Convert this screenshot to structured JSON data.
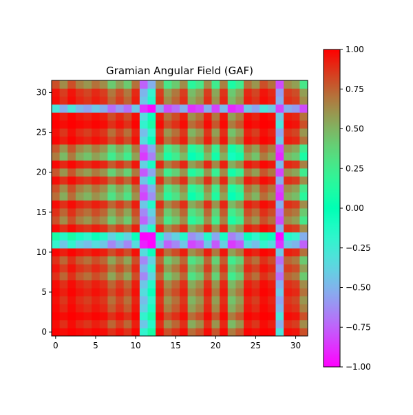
{
  "chart_data": {
    "type": "heatmap",
    "title": "Gramian Angular Field (GAF)",
    "xlabel": "",
    "ylabel": "",
    "grid": false,
    "origin": "lower",
    "size": 32,
    "xlim": [
      -0.5,
      31.5
    ],
    "ylim": [
      -0.5,
      31.5
    ],
    "x_ticks": [
      0,
      5,
      10,
      15,
      20,
      25,
      30
    ],
    "y_ticks": [
      0,
      5,
      10,
      15,
      20,
      25,
      30
    ],
    "colormap": "rainbow",
    "colorbar": {
      "vmin": -1.0,
      "vmax": 1.0,
      "placement": "right",
      "ticks": [
        -1.0,
        -0.75,
        -0.5,
        -0.25,
        0.0,
        0.25,
        0.5,
        0.75,
        1.0
      ],
      "tick_labels": [
        "−1.00",
        "−0.75",
        "−0.50",
        "−0.25",
        "0.00",
        "0.25",
        "0.50",
        "0.75",
        "1.00"
      ]
    },
    "series_1d": [
      -1.0,
      -0.97,
      -1.0,
      -0.98,
      -0.96,
      -0.99,
      -0.97,
      -0.88,
      -0.95,
      -0.88,
      -0.99,
      0.2,
      -0.1,
      -0.97,
      -0.8,
      -0.88,
      -0.97,
      -0.72,
      -0.8,
      -0.97,
      -0.78,
      -0.98,
      -0.68,
      -0.78,
      -0.99,
      -0.96,
      -1.0,
      -0.99,
      0.3,
      -0.97,
      -0.95,
      -0.8
    ],
    "matrix_rule": "cos(phi_i + phi_j), phi = arccos(series_1d)"
  }
}
